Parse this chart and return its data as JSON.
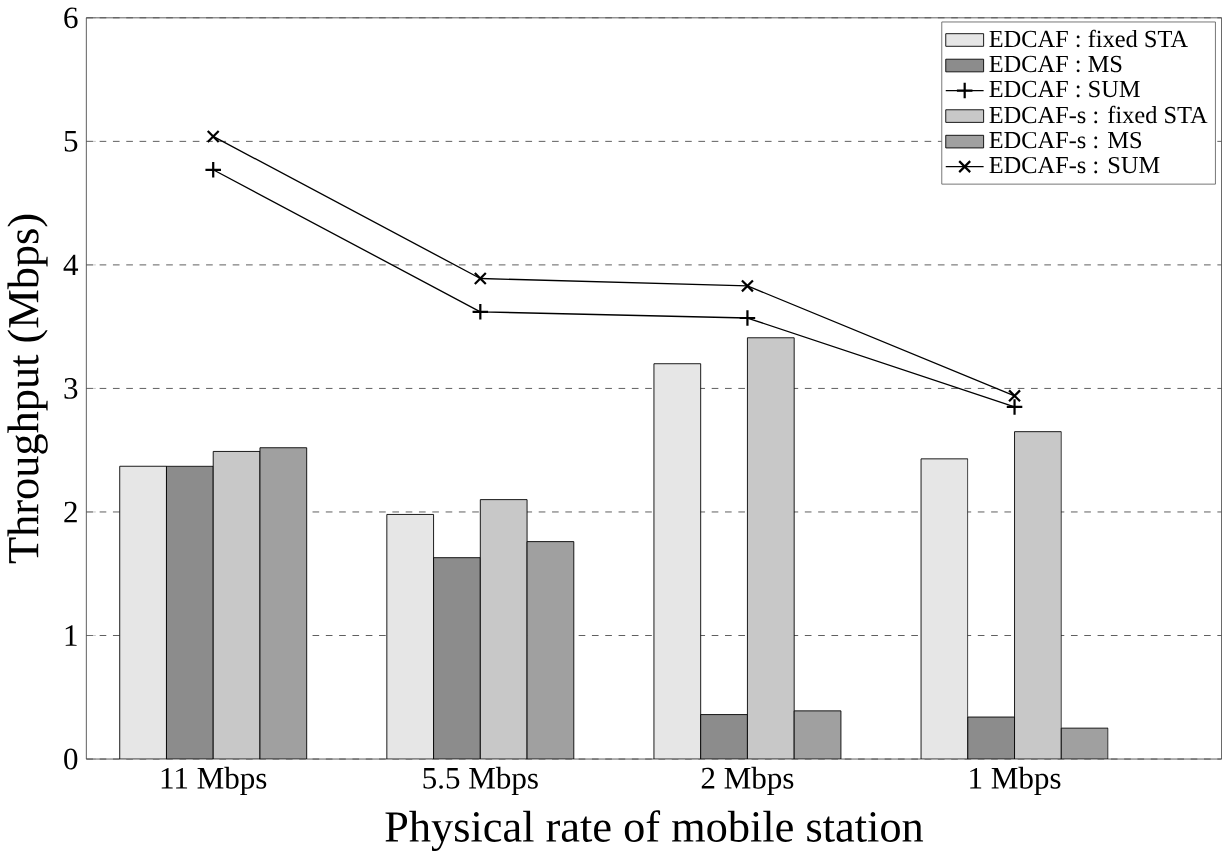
{
  "chart_data": {
    "type": "bar",
    "xlabel": "Physical rate of mobile station",
    "ylabel": "Throughput (Mbps)",
    "categories": [
      "11 Mbps",
      "5.5 Mbps",
      "2 Mbps",
      "1 Mbps"
    ],
    "ylim": [
      0,
      6
    ],
    "yticks": [
      0,
      1,
      2,
      3,
      4,
      5,
      6
    ],
    "grid": "y",
    "legend": "top right",
    "series": [
      {
        "name": "EDCAF : fixed STA",
        "color": "#e6e6e6",
        "values": [
          2.37,
          1.98,
          3.2,
          2.43
        ]
      },
      {
        "name": "EDCAF : MS",
        "color": "#8c8c8c",
        "values": [
          2.37,
          1.63,
          0.36,
          0.34
        ]
      },
      {
        "name": "EDCAF : SUM",
        "type": "line",
        "marker": "cross",
        "color": "#000000",
        "values": [
          4.77,
          3.62,
          3.57,
          2.85
        ]
      },
      {
        "name": "EDCAF-s : fixed STA",
        "color": "#c8c8c8",
        "values": [
          2.49,
          2.1,
          3.41,
          2.65
        ]
      },
      {
        "name": "EDCAF-s : MS",
        "color": "#a0a0a0",
        "values": [
          2.52,
          1.76,
          0.39,
          0.25
        ]
      },
      {
        "name": "EDCAF-s : SUM",
        "type": "line",
        "marker": "cross",
        "color": "#000000",
        "values": [
          5.04,
          3.89,
          3.83,
          2.94
        ]
      }
    ]
  }
}
